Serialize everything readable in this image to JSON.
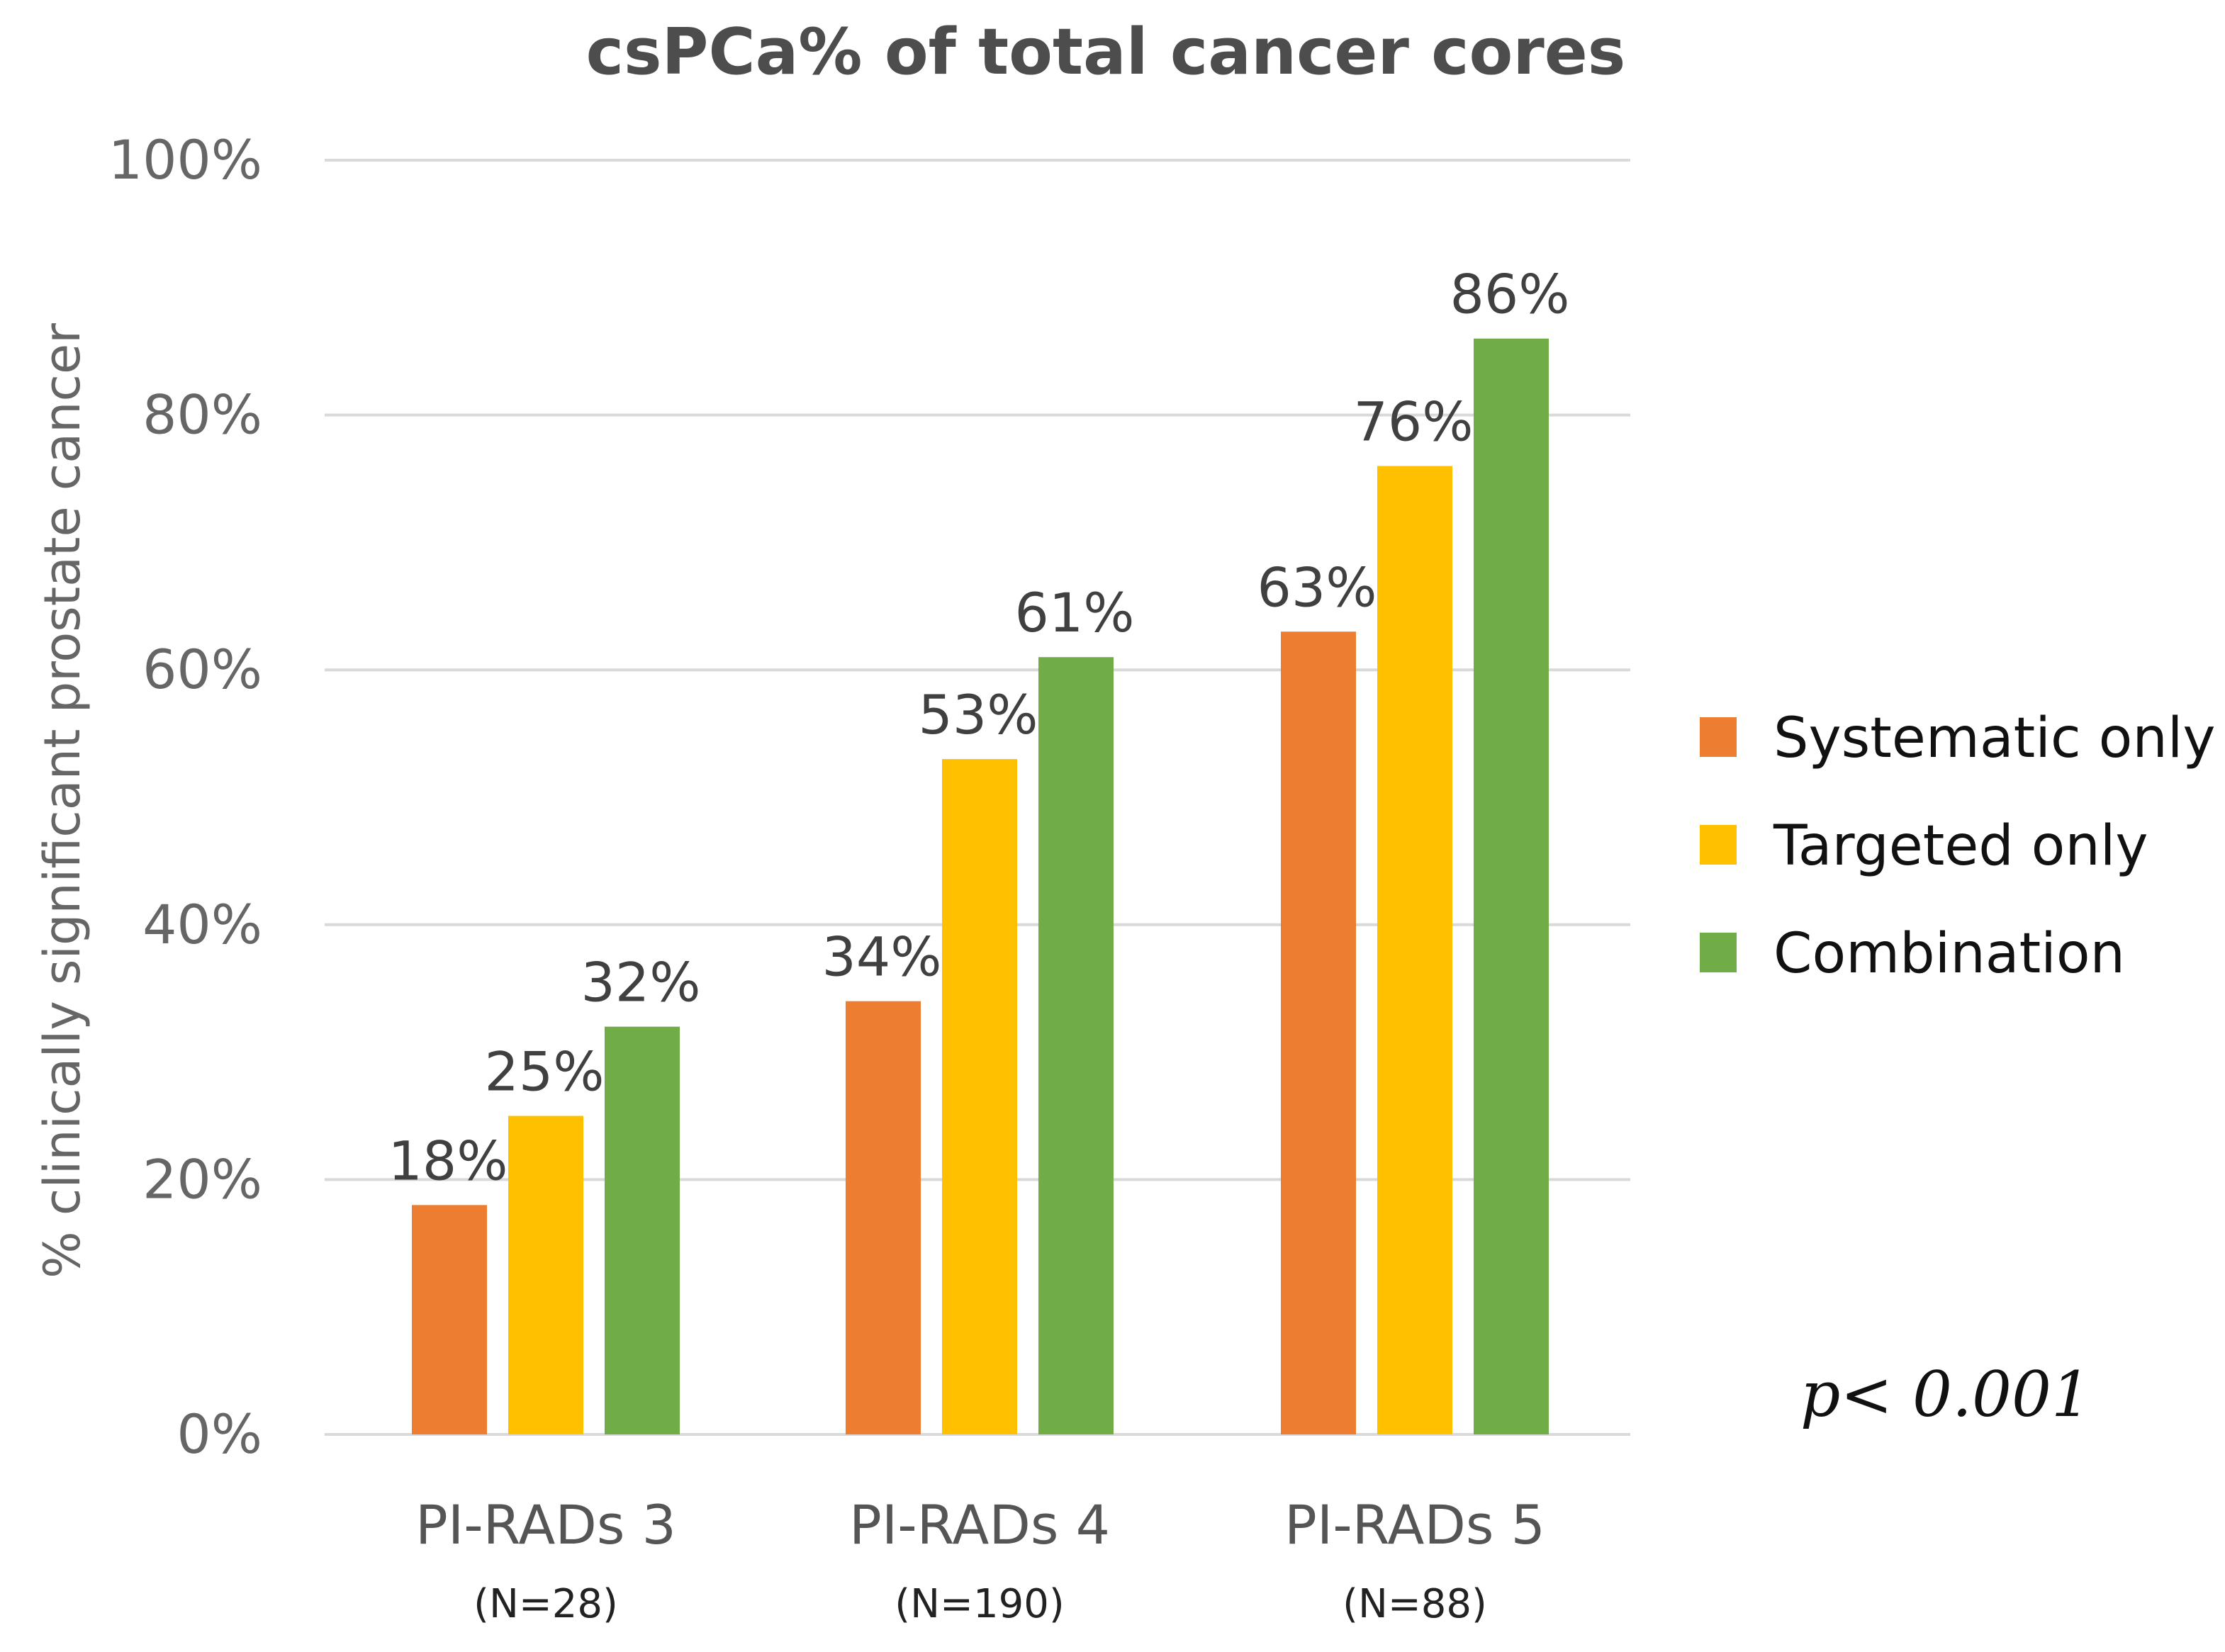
{
  "chart_data": {
    "type": "bar",
    "title": "csPCa% of total cancer cores",
    "ylabel": "% clinically significant prostate cancer",
    "xlabel": "",
    "ylim": [
      0,
      100
    ],
    "yticks": [
      0,
      20,
      40,
      60,
      80,
      100
    ],
    "ytick_labels": [
      "0%",
      "20%",
      "40%",
      "60%",
      "80%",
      "100%"
    ],
    "grid": true,
    "legend_position": "right",
    "categories": [
      "PI-RADs 3",
      "PI-RADs 4",
      "PI-RADs 5"
    ],
    "category_sublabels": [
      "(N=28)",
      "(N=190)",
      "(N=88)"
    ],
    "series": [
      {
        "name": "Systematic only",
        "color": "#ED7D31",
        "values": [
          18,
          34,
          63
        ],
        "labels": [
          "18%",
          "34%",
          "63%"
        ]
      },
      {
        "name": "Targeted only",
        "color": "#FFC000",
        "values": [
          25,
          53,
          76
        ],
        "labels": [
          "25%",
          "53%",
          "76%"
        ]
      },
      {
        "name": "Combination",
        "color": "#70AD47",
        "values": [
          32,
          61,
          86
        ],
        "labels": [
          "32%",
          "61%",
          "86%"
        ]
      }
    ],
    "annotation": "p< 0.001"
  }
}
